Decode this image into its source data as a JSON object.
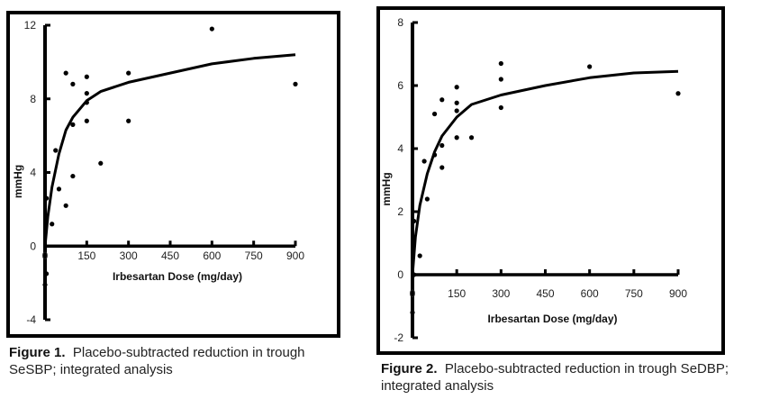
{
  "chart_data": [
    {
      "type": "scatter",
      "title": "",
      "xlabel": "Irbesartan Dose (mg/day)",
      "ylabel": "mmHg",
      "xlim": [
        0,
        900
      ],
      "ylim": [
        -4,
        12
      ],
      "xticks": [
        "0",
        "150",
        "300",
        "450",
        "600",
        "750",
        "900"
      ],
      "yticks": [
        "12",
        "8",
        "4",
        "0",
        "-4"
      ],
      "grid": false,
      "series": [
        {
          "name": "observed",
          "kind": "points",
          "points": [
            [
              75,
              9.4
            ],
            [
              150,
              9.2
            ],
            [
              100,
              8.8
            ],
            [
              150,
              8.3
            ],
            [
              150,
              7.8
            ],
            [
              150,
              6.8
            ],
            [
              100,
              6.6
            ],
            [
              38,
              5.2
            ],
            [
              300,
              9.4
            ],
            [
              300,
              6.8
            ],
            [
              200,
              4.5
            ],
            [
              100,
              3.8
            ],
            [
              50,
              3.1
            ],
            [
              75,
              2.2
            ],
            [
              25,
              1.2
            ],
            [
              600,
              11.8
            ],
            [
              900,
              8.8
            ],
            [
              5,
              2.6
            ],
            [
              5,
              -1.5
            ],
            [
              0,
              -2.1
            ]
          ]
        },
        {
          "name": "fitted",
          "kind": "line",
          "points": [
            [
              0,
              0
            ],
            [
              10,
              1.6
            ],
            [
              25,
              3.2
            ],
            [
              50,
              5.0
            ],
            [
              75,
              6.3
            ],
            [
              100,
              7.0
            ],
            [
              150,
              7.9
            ],
            [
              200,
              8.4
            ],
            [
              300,
              8.9
            ],
            [
              450,
              9.4
            ],
            [
              600,
              9.9
            ],
            [
              750,
              10.2
            ],
            [
              900,
              10.4
            ]
          ]
        }
      ],
      "caption": {
        "label": "Figure 1.",
        "text": "Placebo-subtracted reduction in trough SeSBP; integrated analysis"
      }
    },
    {
      "type": "scatter",
      "title": "",
      "xlabel": "Irbesartan Dose (mg/day)",
      "ylabel": "mmHg",
      "xlim": [
        0,
        900
      ],
      "ylim": [
        -2,
        8
      ],
      "xticks": [
        "0",
        "150",
        "300",
        "450",
        "600",
        "750",
        "900"
      ],
      "yticks": [
        "8",
        "6",
        "4",
        "2",
        "0",
        "-2"
      ],
      "grid": false,
      "series": [
        {
          "name": "observed",
          "kind": "points",
          "points": [
            [
              300,
              6.7
            ],
            [
              300,
              6.2
            ],
            [
              300,
              5.3
            ],
            [
              600,
              6.6
            ],
            [
              900,
              5.75
            ],
            [
              150,
              5.95
            ],
            [
              150,
              5.45
            ],
            [
              150,
              5.2
            ],
            [
              100,
              5.55
            ],
            [
              75,
              5.1
            ],
            [
              150,
              4.35
            ],
            [
              200,
              4.35
            ],
            [
              100,
              4.1
            ],
            [
              75,
              3.8
            ],
            [
              40,
              3.6
            ],
            [
              100,
              3.4
            ],
            [
              50,
              2.4
            ],
            [
              25,
              0.6
            ],
            [
              5,
              1.7
            ],
            [
              5,
              0.0
            ],
            [
              0,
              -1.2
            ]
          ]
        },
        {
          "name": "fitted",
          "kind": "line",
          "points": [
            [
              0,
              0
            ],
            [
              10,
              1.2
            ],
            [
              25,
              2.2
            ],
            [
              50,
              3.2
            ],
            [
              75,
              3.9
            ],
            [
              100,
              4.4
            ],
            [
              150,
              5.0
            ],
            [
              200,
              5.4
            ],
            [
              300,
              5.7
            ],
            [
              450,
              6.0
            ],
            [
              600,
              6.25
            ],
            [
              750,
              6.4
            ],
            [
              900,
              6.45
            ]
          ]
        }
      ],
      "caption": {
        "label": "Figure 2.",
        "text": "Placebo-subtracted reduction in trough SeDBP; integrated analysis"
      }
    }
  ]
}
